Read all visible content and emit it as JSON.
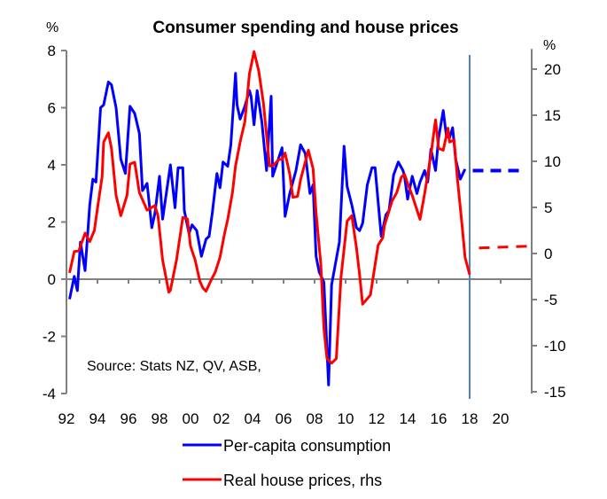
{
  "chart_data": {
    "type": "line",
    "title": "Consumer spending and house prices",
    "source_note": "Source: Stats NZ, QV, ASB,",
    "left_axis": {
      "unit_label": "%",
      "ylim": [
        -4,
        8
      ],
      "ticks": [
        -4,
        -2,
        0,
        2,
        4,
        6,
        8
      ],
      "tick_labels": [
        "-4",
        "-2",
        "0",
        "2",
        "4",
        "6",
        "8"
      ]
    },
    "right_axis": {
      "unit_label": "%",
      "ylim": [
        -15,
        22
      ],
      "ticks": [
        -15,
        -10,
        -5,
        0,
        5,
        10,
        15,
        20
      ],
      "tick_labels": [
        "-15",
        "-10",
        "-5",
        "0",
        "5",
        "10",
        "15",
        "20"
      ]
    },
    "x_axis": {
      "xlim": [
        1992,
        2022
      ],
      "ticks": [
        1992,
        1994,
        1996,
        1998,
        2000,
        2002,
        2004,
        2006,
        2008,
        2010,
        2012,
        2014,
        2016,
        2018,
        2020
      ],
      "tick_labels": [
        "92",
        "94",
        "96",
        "98",
        "00",
        "02",
        "04",
        "06",
        "08",
        "10",
        "12",
        "14",
        "16",
        "18",
        "20"
      ]
    },
    "forecast_divider_year": 2018,
    "grid": false,
    "legend_position": "bottom",
    "series": [
      {
        "name": "Per-capita consumption",
        "axis": "left",
        "color": "#0000ff",
        "points": [
          [
            1992.2,
            -0.7
          ],
          [
            1992.5,
            0.1
          ],
          [
            1992.7,
            -0.4
          ],
          [
            1992.9,
            1.3
          ],
          [
            1993.2,
            0.3
          ],
          [
            1993.5,
            2.6
          ],
          [
            1993.7,
            3.5
          ],
          [
            1993.9,
            3.4
          ],
          [
            1994.2,
            6.0
          ],
          [
            1994.4,
            6.1
          ],
          [
            1994.7,
            6.9
          ],
          [
            1994.9,
            6.8
          ],
          [
            1995.2,
            6.0
          ],
          [
            1995.5,
            4.2
          ],
          [
            1995.8,
            3.7
          ],
          [
            1996.1,
            6.05
          ],
          [
            1996.4,
            5.8
          ],
          [
            1996.7,
            5.1
          ],
          [
            1996.9,
            3.1
          ],
          [
            1997.2,
            3.35
          ],
          [
            1997.5,
            1.8
          ],
          [
            1997.7,
            2.3
          ],
          [
            1998.0,
            3.6
          ],
          [
            1998.2,
            2.1
          ],
          [
            1998.7,
            4.0
          ],
          [
            1999.0,
            2.5
          ],
          [
            1999.2,
            3.9
          ],
          [
            1999.5,
            3.9
          ],
          [
            1999.6,
            2.4
          ],
          [
            1999.9,
            1.6
          ],
          [
            2000.1,
            1.9
          ],
          [
            2000.4,
            1.7
          ],
          [
            2000.7,
            0.8
          ],
          [
            2001.0,
            1.4
          ],
          [
            2001.2,
            1.5
          ],
          [
            2001.4,
            2.3
          ],
          [
            2001.7,
            3.7
          ],
          [
            2001.9,
            3.2
          ],
          [
            2002.1,
            4.1
          ],
          [
            2002.4,
            3.95
          ],
          [
            2002.6,
            4.7
          ],
          [
            2002.9,
            7.2
          ],
          [
            2003.0,
            6.1
          ],
          [
            2003.2,
            5.6
          ],
          [
            2003.5,
            6.05
          ],
          [
            2003.8,
            6.6
          ],
          [
            2003.9,
            6.4
          ],
          [
            2004.1,
            5.4
          ],
          [
            2004.3,
            6.6
          ],
          [
            2004.6,
            5.5
          ],
          [
            2004.9,
            3.8
          ],
          [
            2005.2,
            6.4
          ],
          [
            2005.3,
            3.6
          ],
          [
            2005.6,
            4.1
          ],
          [
            2005.9,
            4.6
          ],
          [
            2006.1,
            2.2
          ],
          [
            2006.4,
            3.0
          ],
          [
            2006.8,
            3.8
          ],
          [
            2007.1,
            4.7
          ],
          [
            2007.4,
            4.4
          ],
          [
            2007.7,
            3.0
          ],
          [
            2007.9,
            3.3
          ],
          [
            2008.1,
            0.8
          ],
          [
            2008.3,
            0.25
          ],
          [
            2008.6,
            -0.1
          ],
          [
            2008.9,
            -3.7
          ],
          [
            2009.1,
            -0.2
          ],
          [
            2009.6,
            1.3
          ],
          [
            2009.9,
            4.65
          ],
          [
            2010.1,
            3.25
          ],
          [
            2010.4,
            2.6
          ],
          [
            2010.7,
            1.8
          ],
          [
            2010.9,
            1.7
          ],
          [
            2011.1,
            1.95
          ],
          [
            2011.4,
            3.3
          ],
          [
            2011.7,
            3.9
          ],
          [
            2011.9,
            3.9
          ],
          [
            2012.3,
            1.5
          ],
          [
            2012.6,
            2.25
          ],
          [
            2012.8,
            2.4
          ],
          [
            2013.1,
            3.65
          ],
          [
            2013.4,
            4.1
          ],
          [
            2013.7,
            3.8
          ],
          [
            2013.8,
            3.6
          ],
          [
            2014.0,
            2.8
          ],
          [
            2014.3,
            3.6
          ],
          [
            2014.6,
            3.0
          ],
          [
            2014.8,
            3.4
          ],
          [
            2015.1,
            3.8
          ],
          [
            2015.3,
            3.4
          ],
          [
            2015.5,
            4.55
          ],
          [
            2015.8,
            3.8
          ],
          [
            2016.0,
            4.95
          ],
          [
            2016.3,
            5.9
          ],
          [
            2016.5,
            5.0
          ],
          [
            2016.7,
            4.95
          ],
          [
            2016.9,
            5.3
          ],
          [
            2017.1,
            4.2
          ],
          [
            2017.4,
            3.5
          ],
          [
            2017.7,
            3.85
          ]
        ],
        "forecast": {
          "style": "dashed",
          "points": [
            [
              2018.2,
              3.8
            ],
            [
              2021.4,
              3.8
            ]
          ]
        }
      },
      {
        "name": "Real house prices, rhs",
        "axis": "right",
        "color": "#ff0000",
        "points": [
          [
            1992.2,
            -2.1
          ],
          [
            1992.5,
            0.2
          ],
          [
            1992.8,
            0.3
          ],
          [
            1993.2,
            2.2
          ],
          [
            1993.5,
            1.3
          ],
          [
            1993.8,
            2.5
          ],
          [
            1994.0,
            4.9
          ],
          [
            1994.3,
            8.3
          ],
          [
            1994.4,
            12.1
          ],
          [
            1994.7,
            13.1
          ],
          [
            1994.9,
            11.4
          ],
          [
            1995.2,
            6.3
          ],
          [
            1995.5,
            4.1
          ],
          [
            1995.9,
            6.3
          ],
          [
            1996.1,
            9.7
          ],
          [
            1996.4,
            9.9
          ],
          [
            1996.7,
            6.6
          ],
          [
            1997.2,
            4.7
          ],
          [
            1997.7,
            5.2
          ],
          [
            1997.9,
            4.1
          ],
          [
            1998.2,
            -0.7
          ],
          [
            1998.6,
            -4.2
          ],
          [
            1998.7,
            -4.0
          ],
          [
            1999.1,
            -0.7
          ],
          [
            1999.5,
            3.9
          ],
          [
            1999.8,
            3.75
          ],
          [
            2000.0,
            0.8
          ],
          [
            2000.3,
            -0.7
          ],
          [
            2000.6,
            -3.0
          ],
          [
            2000.8,
            -3.75
          ],
          [
            2001.0,
            -4.1
          ],
          [
            2001.3,
            -3.0
          ],
          [
            2001.6,
            -2.0
          ],
          [
            2001.9,
            -0.4
          ],
          [
            2002.2,
            2.2
          ],
          [
            2002.4,
            3.7
          ],
          [
            2002.7,
            6.6
          ],
          [
            2002.9,
            9.5
          ],
          [
            2003.2,
            12.1
          ],
          [
            2003.5,
            14.3
          ],
          [
            2003.8,
            19.5
          ],
          [
            2004.1,
            21.9
          ],
          [
            2004.4,
            19.8
          ],
          [
            2004.7,
            16.3
          ],
          [
            2005.1,
            9.5
          ],
          [
            2005.3,
            9.5
          ],
          [
            2005.7,
            10.2
          ],
          [
            2005.9,
            10.2
          ],
          [
            2006.1,
            10.9
          ],
          [
            2006.4,
            8.6
          ],
          [
            2006.6,
            6.1
          ],
          [
            2006.9,
            6.2
          ],
          [
            2007.1,
            8.0
          ],
          [
            2007.6,
            11.2
          ],
          [
            2007.9,
            9.2
          ],
          [
            2008.1,
            4.4
          ],
          [
            2008.4,
            -1.1
          ],
          [
            2008.6,
            -8.1
          ],
          [
            2008.8,
            -11.4
          ],
          [
            2009.1,
            -11.9
          ],
          [
            2009.4,
            -11.4
          ],
          [
            2009.7,
            -2.6
          ],
          [
            2010.1,
            3.5
          ],
          [
            2010.4,
            4.1
          ],
          [
            2010.7,
            0.6
          ],
          [
            2010.9,
            -2.3
          ],
          [
            2011.1,
            -5.5
          ],
          [
            2011.6,
            -4.5
          ],
          [
            2012.1,
            0.9
          ],
          [
            2012.4,
            1.7
          ],
          [
            2012.5,
            3.0
          ],
          [
            2013.0,
            5.7
          ],
          [
            2013.3,
            6.6
          ],
          [
            2013.6,
            8.3
          ],
          [
            2013.8,
            8.6
          ],
          [
            2014.0,
            7.6
          ],
          [
            2014.3,
            6.3
          ],
          [
            2014.8,
            3.7
          ],
          [
            2015.1,
            6.5
          ],
          [
            2015.5,
            10.7
          ],
          [
            2015.8,
            14.5
          ],
          [
            2016.0,
            11.4
          ],
          [
            2016.3,
            11.2
          ],
          [
            2016.6,
            13.6
          ],
          [
            2016.7,
            12.1
          ],
          [
            2017.0,
            12.3
          ],
          [
            2017.2,
            8.3
          ],
          [
            2017.5,
            3.2
          ],
          [
            2017.7,
            -0.4
          ],
          [
            2018.0,
            -2.3
          ]
        ],
        "forecast": {
          "style": "dashed",
          "points": [
            [
              2018.6,
              0.6
            ],
            [
              2022.0,
              0.8
            ]
          ]
        }
      }
    ],
    "legend": [
      {
        "label": "Per-capita consumption",
        "color": "#0000ff"
      },
      {
        "label": "Real house prices, rhs",
        "color": "#ff0000"
      }
    ]
  },
  "colors": {
    "axis": "#808080",
    "divider": "#4f81bd",
    "consumption": "#0000ff",
    "house_prices": "#ff0000"
  }
}
